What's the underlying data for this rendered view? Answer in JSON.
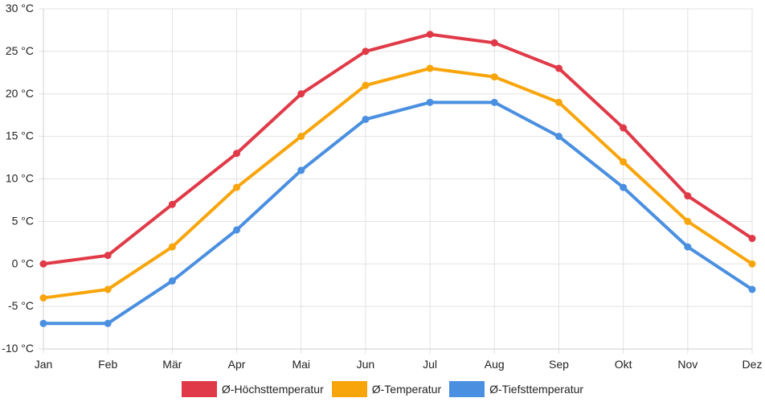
{
  "chart_data": {
    "type": "line",
    "categories": [
      "Jan",
      "Feb",
      "Mär",
      "Apr",
      "Mai",
      "Jun",
      "Jul",
      "Aug",
      "Sep",
      "Okt",
      "Nov",
      "Dez"
    ],
    "series": [
      {
        "name": "Ø-Höchsttemperatur",
        "color": "#e03a48",
        "values": [
          0,
          1,
          7,
          13,
          20,
          25,
          27,
          26,
          23,
          16,
          8,
          3
        ]
      },
      {
        "name": "Ø-Temperatur",
        "color": "#f8a50c",
        "values": [
          -4,
          -3,
          2,
          9,
          15,
          21,
          23,
          22,
          19,
          12,
          5,
          0
        ]
      },
      {
        "name": "Ø-Tiefsttemperatur",
        "color": "#4a8fe0",
        "values": [
          -7,
          -7,
          -2,
          4,
          11,
          17,
          19,
          19,
          15,
          9,
          2,
          -3
        ]
      }
    ],
    "ylim": [
      -10,
      30
    ],
    "yticks": [
      30,
      25,
      20,
      15,
      10,
      5,
      0,
      -5,
      -10
    ],
    "ytick_labels": [
      "30 °C",
      "25 °C",
      "20 °C",
      "15 °C",
      "10 °C",
      "5 °C",
      "0 °C",
      "-5 °C",
      "-10 °C"
    ],
    "grid": true,
    "legend_position": "bottom"
  }
}
